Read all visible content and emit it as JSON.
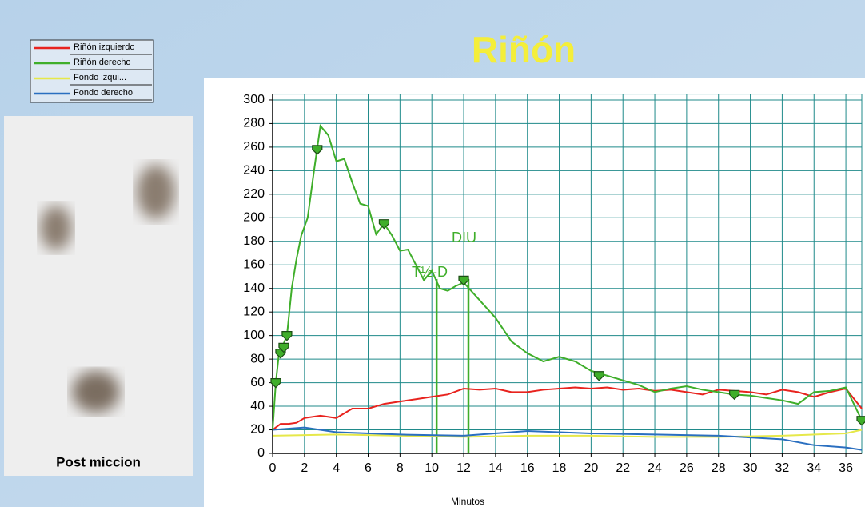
{
  "chart_data": {
    "type": "line",
    "title": "Riñón",
    "x_label": "Minutos",
    "xlim": [
      0,
      37
    ],
    "xticks": [
      0,
      2,
      4,
      6,
      8,
      10,
      12,
      14,
      16,
      18,
      20,
      22,
      24,
      26,
      28,
      30,
      32,
      34,
      36
    ],
    "ylim": [
      0,
      305
    ],
    "yticks": [
      0,
      20,
      40,
      60,
      80,
      100,
      120,
      140,
      160,
      180,
      200,
      220,
      240,
      260,
      280,
      300
    ],
    "grid": true,
    "grid_color": "#1f8a8a",
    "legend": "top-left",
    "series": [
      {
        "name": "Riñón izquierdo",
        "color": "#e8231e",
        "x": [
          0,
          0.5,
          1,
          1.5,
          2,
          3,
          4,
          5,
          6,
          7,
          8,
          9,
          10,
          11,
          12,
          13,
          14,
          15,
          16,
          17,
          18,
          19,
          20,
          21,
          22,
          23,
          24,
          25,
          26,
          27,
          28,
          29,
          30,
          31,
          32,
          33,
          34,
          35,
          36,
          37
        ],
        "values": [
          20,
          25,
          25,
          26,
          30,
          32,
          30,
          38,
          38,
          42,
          44,
          46,
          48,
          50,
          55,
          54,
          55,
          52,
          52,
          54,
          55,
          56,
          55,
          56,
          54,
          55,
          53,
          54,
          52,
          50,
          54,
          53,
          52,
          50,
          54,
          52,
          48,
          52,
          55,
          38
        ]
      },
      {
        "name": "Riñón derecho",
        "color": "#3fae2a",
        "x": [
          0,
          0.2,
          0.4,
          0.6,
          0.9,
          1.2,
          1.5,
          1.8,
          2.2,
          2.6,
          3.0,
          3.5,
          4.0,
          4.5,
          5.0,
          5.5,
          6.0,
          6.5,
          7.0,
          7.5,
          8.0,
          8.5,
          9.0,
          9.5,
          10,
          10.5,
          11,
          11.5,
          12,
          13,
          14,
          15,
          16,
          17,
          18,
          19,
          20,
          21,
          22,
          23,
          24,
          25,
          26,
          27,
          28,
          29,
          30,
          31,
          32,
          33,
          34,
          35,
          36,
          37
        ],
        "values": [
          20,
          60,
          85,
          90,
          100,
          140,
          165,
          185,
          200,
          240,
          278,
          270,
          248,
          250,
          230,
          212,
          210,
          186,
          195,
          185,
          172,
          173,
          160,
          147,
          155,
          140,
          138,
          142,
          145,
          130,
          115,
          95,
          85,
          78,
          82,
          78,
          70,
          66,
          62,
          58,
          52,
          55,
          57,
          54,
          52,
          50,
          49,
          47,
          45,
          42,
          52,
          53,
          56,
          28
        ]
      },
      {
        "name": "Fondo izqui...",
        "color": "#e6e84a",
        "x": [
          0,
          4,
          8,
          12,
          16,
          20,
          24,
          28,
          32,
          36,
          37
        ],
        "values": [
          15,
          16,
          15,
          14,
          15,
          15,
          14,
          14,
          15,
          17,
          20
        ]
      },
      {
        "name": "Fondo derecho",
        "color": "#2a6fc0",
        "x": [
          0,
          2,
          4,
          8,
          12,
          16,
          20,
          24,
          28,
          32,
          34,
          36,
          37
        ],
        "values": [
          20,
          22,
          18,
          16,
          15,
          19,
          17,
          16,
          15,
          12,
          7,
          5,
          3
        ]
      }
    ],
    "markers": {
      "x": [
        0.2,
        0.5,
        0.7,
        0.9,
        2.8,
        7.0,
        12.0,
        20.5,
        29,
        37
      ],
      "values": [
        60,
        85,
        90,
        100,
        258,
        195,
        147,
        66,
        50,
        28
      ]
    },
    "vlines": [
      10.3,
      12.3
    ],
    "annotations": [
      "DIU",
      "T½-D"
    ],
    "image_caption": "Post miccion"
  }
}
